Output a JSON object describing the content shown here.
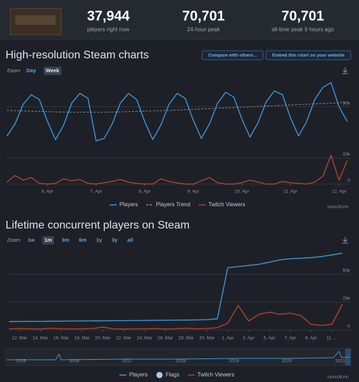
{
  "header": {
    "stats": [
      {
        "value": "37,944",
        "label": "players right now"
      },
      {
        "value": "70,701",
        "label": "24-hour peak"
      },
      {
        "value": "70,701",
        "label": "all-time peak 9 hours ago"
      }
    ]
  },
  "buttons": [
    "Compare with others...",
    "Embed this chart on your website"
  ],
  "navigator_years": [
    "2015",
    "2016",
    "2017",
    "2018",
    "2019",
    "2020",
    "2021"
  ],
  "chart_data": [
    {
      "type": "line",
      "title": "High-resolution Steam charts",
      "zoom_label": "Zoom",
      "zoom_options": [
        "Day",
        "Week"
      ],
      "zoom_active": "Week",
      "credit": "SteamDB.info",
      "categories": [
        null,
        null,
        null,
        null,
        null,
        "6. Apr",
        null,
        null,
        null,
        null,
        null,
        "7. Apr",
        null,
        null,
        null,
        null,
        null,
        "8. Apr",
        null,
        null,
        null,
        null,
        null,
        "9. Apr",
        null,
        null,
        null,
        null,
        null,
        "10. Apr",
        null,
        null,
        null,
        null,
        null,
        "11. Apr",
        null,
        null,
        null,
        null,
        null,
        "12. Apr",
        null
      ],
      "ylim": [
        15000,
        75000
      ],
      "yticks": [
        {
          "value": 50000,
          "label": "50k"
        }
      ],
      "y2lim": [
        0,
        25000
      ],
      "y2ticks": [
        0,
        {
          "value": 20000,
          "label": "20k"
        }
      ],
      "grid": true,
      "series": [
        {
          "name": "Players",
          "color": "#3f95df",
          "style": "solid",
          "values": [
            26000,
            36000,
            52000,
            60000,
            56000,
            38000,
            23000,
            35000,
            53000,
            61000,
            57000,
            22000,
            24000,
            36000,
            53000,
            61000,
            56000,
            38000,
            23000,
            35000,
            52000,
            61000,
            57000,
            39000,
            24000,
            36000,
            53000,
            62000,
            58000,
            40000,
            25000,
            37000,
            54000,
            63000,
            60000,
            41000,
            26000,
            38000,
            56000,
            66000,
            70000,
            50000,
            38000
          ]
        },
        {
          "name": "Players Trend",
          "color": "#8b9199",
          "style": "dashed",
          "values": [
            47000,
            46800,
            46600,
            46400,
            46200,
            46000,
            45800,
            45700,
            45600,
            45500,
            45500,
            45500,
            45600,
            45700,
            45800,
            46000,
            46200,
            46400,
            46600,
            46800,
            47000,
            47300,
            47600,
            47900,
            48200,
            48500,
            48800,
            49100,
            49400,
            49700,
            50000,
            50300,
            50600,
            50900,
            51200,
            51500,
            51800,
            52100,
            52400,
            52700,
            53000,
            53300,
            53500
          ]
        },
        {
          "name": "Twitch Viewers",
          "color": "#b5412f",
          "style": "solid",
          "axis": "y2",
          "values": [
            1500,
            6500,
            3000,
            5000,
            500,
            0,
            500,
            4000,
            2500,
            3500,
            500,
            0,
            1000,
            2000,
            3500,
            1500,
            500,
            0,
            0,
            4000,
            2000,
            800,
            0,
            0,
            2500,
            5000,
            1000,
            0,
            0,
            1000,
            3000,
            1500,
            0,
            0,
            2000,
            1000,
            500,
            0,
            1500,
            6000,
            22000,
            3000,
            18000
          ]
        }
      ]
    },
    {
      "type": "line",
      "title": "Lifetime concurrent players on Steam",
      "zoom_label": "Zoom",
      "zoom_options": [
        "1w",
        "1m",
        "3m",
        "6m",
        "1y",
        "3y",
        "all"
      ],
      "zoom_active": "1m",
      "credit": "SteamDB.info",
      "legend_extra": "Flags",
      "categories": [
        null,
        "12. Mar",
        null,
        "14. Mar",
        null,
        "16. Mar",
        null,
        "18. Mar",
        null,
        "20. Mar",
        null,
        "22. Mar",
        null,
        "24. Mar",
        null,
        "26. Mar",
        null,
        "28. Mar",
        null,
        "30. Mar",
        null,
        "1. Apr",
        null,
        "3. Apr",
        null,
        "5. Apr",
        null,
        "7. Apr",
        null,
        "9. Apr",
        null,
        "11. ...",
        null
      ],
      "ylim": [
        0,
        75000
      ],
      "yticks": [
        0,
        {
          "value": 25000,
          "label": "25k"
        },
        {
          "value": 50000,
          "label": "50k"
        }
      ],
      "grid": true,
      "series": [
        {
          "name": "Players",
          "color": "#3f95df",
          "style": "solid",
          "values": [
            7500,
            7600,
            7700,
            7700,
            7800,
            7900,
            8000,
            8000,
            8100,
            8200,
            8300,
            8400,
            8500,
            8500,
            8600,
            8700,
            8800,
            8900,
            9000,
            9200,
            10000,
            56000,
            57000,
            58000,
            59000,
            61000,
            63000,
            64000,
            64500,
            65000,
            66000,
            67500,
            69000
          ]
        },
        {
          "name": "Twitch Viewers",
          "color": "#b5412f",
          "style": "solid",
          "values": [
            1000,
            1200,
            1000,
            800,
            1500,
            1000,
            900,
            1000,
            1200,
            2500,
            1000,
            800,
            900,
            1000,
            1200,
            800,
            1000,
            1500,
            1000,
            1200,
            2000,
            6000,
            22000,
            8000,
            14000,
            16000,
            14000,
            15000,
            13000,
            5000,
            4000,
            5000,
            23000
          ]
        }
      ]
    }
  ]
}
